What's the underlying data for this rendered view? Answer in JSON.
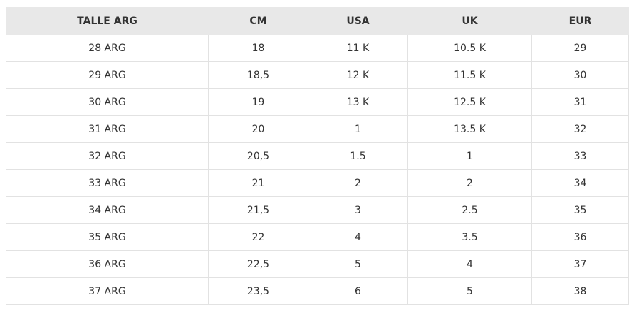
{
  "table": {
    "header": [
      "TALLE ARG",
      "CM",
      "USA",
      "UK",
      "EUR"
    ],
    "rows": [
      [
        "28 ARG",
        "18",
        "11 K",
        "10.5 K",
        "29"
      ],
      [
        "29 ARG",
        "18,5",
        "12 K",
        "11.5 K",
        "30"
      ],
      [
        "30 ARG",
        "19",
        "13 K",
        "12.5 K",
        "31"
      ],
      [
        "31 ARG",
        "20",
        "1",
        "13.5 K",
        "32"
      ],
      [
        "32 ARG",
        "20,5",
        "1.5",
        "1",
        "33"
      ],
      [
        "33 ARG",
        "21",
        "2",
        "2",
        "34"
      ],
      [
        "34 ARG",
        "21,5",
        "3",
        "2.5",
        "35"
      ],
      [
        "35 ARG",
        "22",
        "4",
        "3.5",
        "36"
      ],
      [
        "36 ARG",
        "22,5",
        "5",
        "4",
        "37"
      ],
      [
        "37 ARG",
        "23,5",
        "6",
        "5",
        "38"
      ]
    ]
  }
}
